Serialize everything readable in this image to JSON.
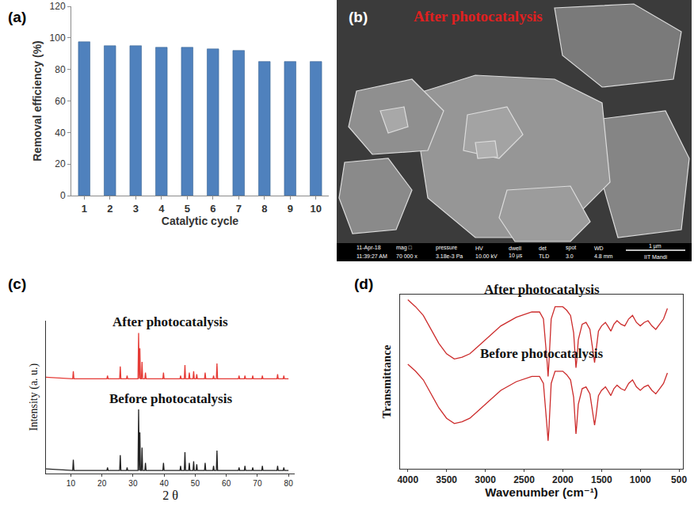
{
  "chart_data": [
    {
      "type": "bar",
      "panel": "(a)",
      "x_label": "Catalytic cycle",
      "y_label": "Removal efficiency (%)",
      "categories": [
        1,
        2,
        3,
        4,
        5,
        6,
        7,
        8,
        9,
        10
      ],
      "values": [
        97.5,
        95,
        95,
        94,
        94,
        93,
        92,
        85,
        85,
        85
      ],
      "color": "#4f81bd",
      "ylim": [
        0,
        120
      ],
      "yticks": [
        0,
        20,
        40,
        60,
        80,
        100,
        120
      ],
      "grid": false
    },
    {
      "type": "image",
      "panel": "(b)",
      "title": "After photocatalysis",
      "info_bar": [
        [
          "11-Apr-18",
          "11:39:27 AM"
        ],
        [
          "mag □",
          "70 000 x"
        ],
        [
          "pressure",
          "3.18e-3 Pa"
        ],
        [
          "HV",
          "10.00 kV"
        ],
        [
          "dwell",
          "10 µs"
        ],
        [
          "det",
          "TLD"
        ],
        [
          "spot",
          "3.0"
        ],
        [
          "WD",
          "4.8 mm"
        ]
      ],
      "scale_bar": "1 µm",
      "institution": "IIT Mandi"
    },
    {
      "type": "line",
      "panel": "(c)",
      "x_label": "2 θ",
      "y_label": "Intensity (a. u.)",
      "xlim": [
        2,
        82
      ],
      "xticks": [
        10,
        20,
        30,
        40,
        50,
        60,
        70,
        80
      ],
      "ylim": [
        0,
        1
      ],
      "yticks": [],
      "tick_labels": "x",
      "grid": false,
      "x": [
        2,
        10.6,
        10.8,
        11.0,
        21.6,
        21.8,
        22.0,
        25.7,
        25.9,
        26.1,
        27.9,
        28.1,
        28.3,
        31.6,
        31.8,
        32.0,
        32.0,
        32.2,
        32.4,
        32.7,
        32.9,
        33.1,
        33.8,
        34.0,
        34.2,
        39.6,
        39.8,
        40.0,
        45.1,
        45.3,
        45.5,
        46.5,
        46.7,
        46.9,
        47.9,
        48.1,
        48.3,
        49.3,
        49.5,
        49.7,
        50.3,
        50.5,
        50.7,
        53.0,
        53.2,
        53.4,
        55.7,
        55.9,
        56.1,
        56.8,
        57.0,
        57.2,
        63.9,
        64.1,
        64.3,
        65.8,
        66.0,
        66.2,
        68.3,
        68.5,
        68.7,
        71.4,
        71.6,
        71.8,
        76.3,
        76.5,
        76.7,
        78.3,
        78.5,
        78.7,
        80
      ],
      "series": [
        {
          "name": "After photocatalysis",
          "color": "#e53a35",
          "values": [
            0.63,
            0.62,
            0.67,
            0.62,
            0.62,
            0.64,
            0.62,
            0.62,
            0.7,
            0.62,
            0.62,
            0.64,
            0.62,
            0.62,
            0.92,
            0.62,
            0.62,
            0.82,
            0.62,
            0.62,
            0.73,
            0.62,
            0.62,
            0.66,
            0.62,
            0.62,
            0.66,
            0.62,
            0.62,
            0.64,
            0.62,
            0.62,
            0.71,
            0.62,
            0.62,
            0.66,
            0.62,
            0.62,
            0.67,
            0.62,
            0.62,
            0.65,
            0.62,
            0.62,
            0.66,
            0.62,
            0.62,
            0.64,
            0.62,
            0.62,
            0.72,
            0.62,
            0.62,
            0.64,
            0.62,
            0.62,
            0.64,
            0.62,
            0.62,
            0.64,
            0.62,
            0.62,
            0.64,
            0.62,
            0.62,
            0.65,
            0.62,
            0.62,
            0.64,
            0.62,
            0.62
          ]
        },
        {
          "name": "Before photocatalysis",
          "color": "#222222",
          "values": [
            0.03,
            0.02,
            0.09,
            0.02,
            0.02,
            0.04,
            0.02,
            0.02,
            0.12,
            0.02,
            0.02,
            0.04,
            0.02,
            0.02,
            0.42,
            0.02,
            0.02,
            0.27,
            0.02,
            0.02,
            0.17,
            0.02,
            0.02,
            0.07,
            0.02,
            0.02,
            0.07,
            0.02,
            0.02,
            0.05,
            0.02,
            0.02,
            0.14,
            0.02,
            0.02,
            0.07,
            0.02,
            0.02,
            0.08,
            0.02,
            0.02,
            0.06,
            0.02,
            0.02,
            0.07,
            0.02,
            0.02,
            0.05,
            0.02,
            0.02,
            0.15,
            0.02,
            0.02,
            0.04,
            0.02,
            0.02,
            0.05,
            0.02,
            0.02,
            0.04,
            0.02,
            0.02,
            0.05,
            0.02,
            0.02,
            0.05,
            0.02,
            0.02,
            0.04,
            0.02,
            0.02
          ]
        }
      ]
    },
    {
      "type": "line",
      "panel": "(d)",
      "x_label": "Wavenumber (cm⁻¹)",
      "y_label": "Transmittance",
      "xlim": [
        4100,
        450
      ],
      "xticks": [
        4000,
        3500,
        3000,
        2500,
        2000,
        1500,
        1000,
        500
      ],
      "ylim": [
        0,
        1
      ],
      "yticks": [],
      "tick_labels": "x",
      "grid": false,
      "x": [
        4000,
        3900,
        3800,
        3700,
        3600,
        3500,
        3400,
        3300,
        3200,
        3100,
        3000,
        2900,
        2800,
        2600,
        2400,
        2300,
        2250,
        2200,
        2190,
        2180,
        2150,
        2100,
        2000,
        1950,
        1900,
        1860,
        1840,
        1830,
        1820,
        1800,
        1750,
        1700,
        1650,
        1610,
        1590,
        1570,
        1540,
        1500,
        1450,
        1420,
        1380,
        1340,
        1300,
        1250,
        1200,
        1150,
        1100,
        1050,
        1000,
        950,
        900,
        850,
        800,
        750,
        700,
        650
      ],
      "series": [
        {
          "name": "After photocatalysis",
          "color": "#cc2b2b",
          "values": [
            0.97,
            0.93,
            0.88,
            0.8,
            0.72,
            0.66,
            0.63,
            0.64,
            0.66,
            0.7,
            0.74,
            0.78,
            0.82,
            0.87,
            0.9,
            0.9,
            0.86,
            0.6,
            0.53,
            0.6,
            0.86,
            0.93,
            0.93,
            0.91,
            0.88,
            0.78,
            0.62,
            0.58,
            0.62,
            0.74,
            0.83,
            0.84,
            0.8,
            0.68,
            0.61,
            0.68,
            0.79,
            0.82,
            0.84,
            0.82,
            0.79,
            0.83,
            0.85,
            0.83,
            0.82,
            0.86,
            0.88,
            0.84,
            0.82,
            0.84,
            0.85,
            0.82,
            0.8,
            0.83,
            0.86,
            0.92
          ]
        },
        {
          "name": "Before photocatalysis",
          "color": "#cc2b2b",
          "values": [
            0.6,
            0.56,
            0.51,
            0.43,
            0.35,
            0.29,
            0.26,
            0.27,
            0.29,
            0.33,
            0.37,
            0.41,
            0.45,
            0.5,
            0.53,
            0.53,
            0.49,
            0.22,
            0.16,
            0.22,
            0.49,
            0.56,
            0.56,
            0.54,
            0.51,
            0.41,
            0.25,
            0.2,
            0.25,
            0.37,
            0.46,
            0.47,
            0.43,
            0.31,
            0.25,
            0.31,
            0.42,
            0.45,
            0.47,
            0.45,
            0.42,
            0.46,
            0.48,
            0.46,
            0.45,
            0.49,
            0.51,
            0.47,
            0.45,
            0.47,
            0.48,
            0.45,
            0.43,
            0.46,
            0.49,
            0.55
          ]
        }
      ]
    }
  ]
}
